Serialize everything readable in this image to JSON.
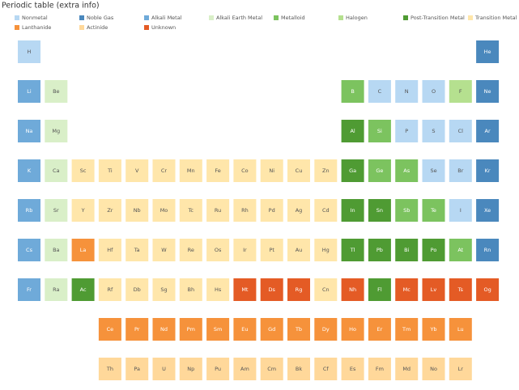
{
  "chart_data": {
    "type": "periodic-table",
    "title": "Periodic table (extra info)",
    "series": [
      {
        "name": "Nonmetal",
        "color": "#b7d8f3",
        "members": [
          "H",
          "C",
          "N",
          "O",
          "P",
          "S",
          "Cl",
          "Se",
          "Br",
          "I"
        ]
      },
      {
        "name": "Noble Gas",
        "color": "#4a88bd",
        "members": [
          "He",
          "Ne",
          "Ar",
          "Kr",
          "Xe",
          "Rn"
        ]
      },
      {
        "name": "Alkali Metal",
        "color": "#6faad9",
        "members": [
          "Li",
          "Na",
          "K",
          "Rb",
          "Cs",
          "Fr"
        ]
      },
      {
        "name": "Alkali Earth Metal",
        "color": "#d9efc8",
        "members": [
          "Be",
          "Mg",
          "Ca",
          "Sr",
          "Ba",
          "Ra"
        ]
      },
      {
        "name": "Metalloid",
        "color": "#7cc35f",
        "members": [
          "B",
          "Si",
          "Ge",
          "As",
          "Sb",
          "Te",
          "At"
        ]
      },
      {
        "name": "Halogen",
        "color": "#b5e08f",
        "members": [
          "F"
        ]
      },
      {
        "name": "Post-Transition Metal",
        "color": "#4f9b33",
        "members": [
          "Al",
          "Ga",
          "In",
          "Sn",
          "Tl",
          "Pb",
          "Bi",
          "Po",
          "Ac",
          "Fl"
        ]
      },
      {
        "name": "Transition Metal",
        "color": "#ffe6aa",
        "members": [
          "Sc",
          "Ti",
          "V",
          "Cr",
          "Mn",
          "Fe",
          "Co",
          "Ni",
          "Cu",
          "Zn",
          "Y",
          "Zr",
          "Nb",
          "Mo",
          "Tc",
          "Ru",
          "Rh",
          "Pd",
          "Ag",
          "Cd",
          "Hf",
          "Ta",
          "W",
          "Re",
          "Os",
          "Ir",
          "Pt",
          "Au",
          "Hg",
          "Rf",
          "Db",
          "Sg",
          "Bh",
          "Hs",
          "Cn"
        ]
      },
      {
        "name": "Lanthanide",
        "color": "#f6923b",
        "members": [
          "La",
          "Ce",
          "Pr",
          "Nd",
          "Pm",
          "Sm",
          "Eu",
          "Gd",
          "Tb",
          "Dy",
          "Ho",
          "Er",
          "Tm",
          "Yb",
          "Lu"
        ]
      },
      {
        "name": "Actinide",
        "color": "#ffd89a",
        "members": [
          "Th",
          "Pa",
          "U",
          "Np",
          "Pu",
          "Am",
          "Cm",
          "Bk",
          "Cf",
          "Es",
          "Fm",
          "Md",
          "No",
          "Lr"
        ]
      },
      {
        "name": "Unknown",
        "color": "#e45b25",
        "members": [
          "Mt",
          "Ds",
          "Rg",
          "Nh",
          "Mc",
          "Lv",
          "Ts",
          "Og"
        ]
      }
    ],
    "rows": [
      [
        "H",
        null,
        null,
        null,
        null,
        null,
        null,
        null,
        null,
        null,
        null,
        null,
        null,
        null,
        null,
        null,
        null,
        "He"
      ],
      [
        "Li",
        "Be",
        null,
        null,
        null,
        null,
        null,
        null,
        null,
        null,
        null,
        null,
        "B",
        "C",
        "N",
        "O",
        "F",
        "Ne"
      ],
      [
        "Na",
        "Mg",
        null,
        null,
        null,
        null,
        null,
        null,
        null,
        null,
        null,
        null,
        "Al",
        "Si",
        "P",
        "S",
        "Cl",
        "Ar"
      ],
      [
        "K",
        "Ca",
        "Sc",
        "Ti",
        "V",
        "Cr",
        "Mn",
        "Fe",
        "Co",
        "Ni",
        "Cu",
        "Zn",
        "Ga",
        "Ge",
        "As",
        "Se",
        "Br",
        "Kr"
      ],
      [
        "Rb",
        "Sr",
        "Y",
        "Zr",
        "Nb",
        "Mo",
        "Tc",
        "Ru",
        "Rh",
        "Pd",
        "Ag",
        "Cd",
        "In",
        "Sn",
        "Sb",
        "Te",
        "I",
        "Xe"
      ],
      [
        "Cs",
        "Ba",
        "La",
        "Hf",
        "Ta",
        "W",
        "Re",
        "Os",
        "Ir",
        "Pt",
        "Au",
        "Hg",
        "Tl",
        "Pb",
        "Bi",
        "Po",
        "At",
        "Rn"
      ],
      [
        "Fr",
        "Ra",
        "Ac",
        "Rf",
        "Db",
        "Sg",
        "Bh",
        "Hs",
        "Mt",
        "Ds",
        "Rg",
        "Cn",
        "Nh",
        "Fl",
        "Mc",
        "Lv",
        "Ts",
        "Og"
      ],
      [
        null,
        null,
        null,
        "Ce",
        "Pr",
        "Nd",
        "Pm",
        "Sm",
        "Eu",
        "Gd",
        "Tb",
        "Dy",
        "Ho",
        "Er",
        "Tm",
        "Yb",
        "Lu",
        null
      ],
      [
        null,
        null,
        null,
        "Th",
        "Pa",
        "U",
        "Np",
        "Pu",
        "Am",
        "Cm",
        "Bk",
        "Cf",
        "Es",
        "Fm",
        "Md",
        "No",
        "Lr",
        null
      ]
    ]
  }
}
